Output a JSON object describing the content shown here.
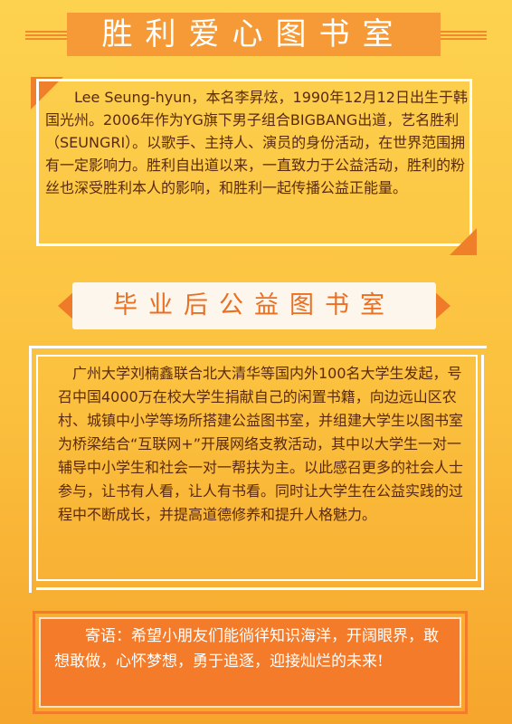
{
  "header": {
    "title": "胜利爱心图书室"
  },
  "section1": {
    "paragraph": "Lee Seung-hyun，本名李昇炫，1990年12月12日出生于韩国光州。2006年作为YG旗下男子组合BIGBANG出道，艺名胜利（SEUNGRI）。以歌手、主持人、演员的身份活动，在世界范围拥有一定影响力。胜利自出道以来，一直致力于公益活动，胜利的粉丝也深受胜利本人的影响，和胜利一起传播公益正能量。"
  },
  "section2": {
    "ribbon_title": "毕业后公益图书室",
    "paragraph": "广州大学刘楠鑫联合北大清华等国内外100名大学生发起，号召中国4000万在校大学生捐献自己的闲置书籍，向边远山区农村、城镇中小学等场所搭建公益图书室，并组建大学生以图书室为桥梁结合“互联网+”开展网络支教活动，其中以大学生一对一辅导中小学生和社会一对一帮扶为主。以此感召更多的社会人士参与，让书有人看，让人有书看。同时让大学生在公益实践的过程中不断成长，并提高道德修养和提升人格魅力。"
  },
  "footer": {
    "message": "寄语：希望小朋友们能徜徉知识海洋，开阔眼界，敢想敢做，心怀梦想，勇于追逐，迎接灿烂的未来!"
  },
  "colors": {
    "background_top": "#fdd24f",
    "background_bottom": "#f6a52c",
    "accent_orange": "#f07f29",
    "text_brown": "#5a2a10",
    "ribbon_bg": "#fdf6ec"
  }
}
